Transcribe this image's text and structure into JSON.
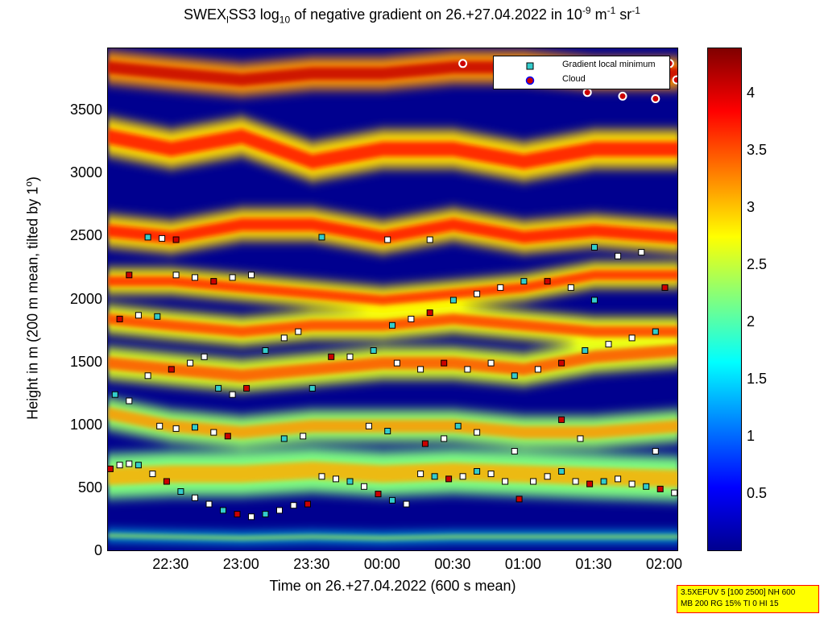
{
  "title": {
    "prefix": "SWEX",
    "sub1": "l",
    "mid1": "SS3 log",
    "sub2": "10",
    "mid2": " of negative gradient on 26.+27.04.2022 in 10",
    "sup1": "-9",
    "mid3": " m",
    "sup2": "-1",
    "mid4": " sr",
    "sup3": "-1"
  },
  "ylabel": {
    "main": "Height in m (200 m mean, tilted by 1",
    "sup": "o",
    "end": ")"
  },
  "xlabel": "Time on 26.+27.04.2022 (600 s mean)",
  "legend": {
    "minimum": "Gradient local minimum",
    "cloud": "Cloud"
  },
  "info": {
    "line1": "3.5XEFUV 5 [100 2500] NH 600",
    "line2": "MB 200 RG 15% TI 0 HI 15"
  },
  "colors": {
    "minimum_fill": "#33cccc",
    "cloud_fill": "#cc0000",
    "cloud_edge": "#0000ff",
    "background": "#00008f"
  },
  "chart_data": {
    "type": "heatmap",
    "x_axis": {
      "label": "Time on 26.+27.04.2022 (600 s mean)",
      "ticks": [
        "22:30",
        "23:00",
        "23:30",
        "00:00",
        "00:30",
        "01:00",
        "01:30",
        "02:00"
      ],
      "tick_minutes": [
        1350,
        1380,
        1410,
        1440,
        1470,
        1500,
        1530,
        1560
      ],
      "range_minutes": [
        1323,
        1566
      ]
    },
    "y_axis": {
      "label": "Height in m (200 m mean, tilted by 1°)",
      "ticks": [
        0,
        500,
        1000,
        1500,
        2000,
        2500,
        3000,
        3500
      ],
      "range": [
        0,
        4000
      ]
    },
    "colorbar": {
      "ticks": [
        0.5,
        1,
        1.5,
        2,
        2.5,
        3,
        3.5,
        4
      ],
      "tick_labels": [
        "0.5",
        "1",
        "1.5",
        "2",
        "2.5",
        "3",
        "3.5",
        "4"
      ],
      "range": [
        0,
        4.4
      ],
      "colormap": "jet"
    },
    "layers": [
      {
        "name": "surface layer",
        "points": [
          [
            1323,
            130
          ],
          [
            1350,
            120
          ],
          [
            1380,
            110
          ],
          [
            1410,
            120
          ],
          [
            1440,
            110
          ],
          [
            1470,
            120
          ],
          [
            1500,
            120
          ],
          [
            1530,
            120
          ],
          [
            1566,
            120
          ]
        ],
        "thickness": 60,
        "value": 1.6
      },
      {
        "name": "boundary layer",
        "points": [
          [
            1323,
            600
          ],
          [
            1350,
            620
          ],
          [
            1380,
            620
          ],
          [
            1410,
            650
          ],
          [
            1440,
            620
          ],
          [
            1470,
            640
          ],
          [
            1500,
            620
          ],
          [
            1530,
            600
          ],
          [
            1566,
            580
          ]
        ],
        "thickness": 350,
        "value": 2.2
      },
      {
        "name": "layer 1000",
        "points": [
          [
            1323,
            1100
          ],
          [
            1350,
            1000
          ],
          [
            1380,
            950
          ],
          [
            1410,
            1000
          ],
          [
            1440,
            1000
          ],
          [
            1470,
            1000
          ],
          [
            1500,
            950
          ],
          [
            1530,
            950
          ],
          [
            1566,
            1000
          ]
        ],
        "thickness": 250,
        "value": 2.3
      },
      {
        "name": "layer 1400",
        "points": [
          [
            1323,
            1500
          ],
          [
            1350,
            1450
          ],
          [
            1380,
            1400
          ],
          [
            1410,
            1450
          ],
          [
            1440,
            1500
          ],
          [
            1470,
            1500
          ],
          [
            1500,
            1450
          ],
          [
            1530,
            1550
          ],
          [
            1566,
            1600
          ]
        ],
        "thickness": 250,
        "value": 2.6
      },
      {
        "name": "layer 1800",
        "points": [
          [
            1323,
            1850
          ],
          [
            1350,
            1800
          ],
          [
            1380,
            1750
          ],
          [
            1410,
            1800
          ],
          [
            1440,
            1800
          ],
          [
            1470,
            1850
          ],
          [
            1500,
            1800
          ],
          [
            1530,
            1750
          ],
          [
            1566,
            1750
          ]
        ],
        "thickness": 220,
        "value": 2.7
      },
      {
        "name": "layer 2100",
        "points": [
          [
            1323,
            2150
          ],
          [
            1350,
            2150
          ],
          [
            1380,
            2100
          ],
          [
            1410,
            2050
          ],
          [
            1440,
            2000
          ],
          [
            1470,
            2050
          ],
          [
            1500,
            2100
          ],
          [
            1530,
            2200
          ],
          [
            1566,
            2200
          ]
        ],
        "thickness": 200,
        "value": 2.8
      },
      {
        "name": "layer 2500",
        "points": [
          [
            1323,
            2550
          ],
          [
            1350,
            2500
          ],
          [
            1380,
            2600
          ],
          [
            1410,
            2600
          ],
          [
            1440,
            2500
          ],
          [
            1470,
            2600
          ],
          [
            1500,
            2500
          ],
          [
            1530,
            2550
          ],
          [
            1566,
            2500
          ]
        ],
        "thickness": 250,
        "value": 2.9
      },
      {
        "name": "layer 3200",
        "points": [
          [
            1323,
            3300
          ],
          [
            1350,
            3200
          ],
          [
            1380,
            3300
          ],
          [
            1410,
            3100
          ],
          [
            1440,
            3200
          ],
          [
            1470,
            3200
          ],
          [
            1500,
            3100
          ],
          [
            1530,
            3200
          ],
          [
            1566,
            3200
          ]
        ],
        "thickness": 300,
        "value": 2.9
      },
      {
        "name": "layer 3800",
        "points": [
          [
            1323,
            3850
          ],
          [
            1350,
            3800
          ],
          [
            1380,
            3750
          ],
          [
            1410,
            3800
          ],
          [
            1440,
            3800
          ],
          [
            1470,
            3850
          ],
          [
            1500,
            3850
          ],
          [
            1530,
            3800
          ],
          [
            1566,
            3800
          ]
        ],
        "thickness": 250,
        "value": 3.2
      }
    ],
    "series": [
      {
        "name": "Gradient local minimum",
        "marker": "square",
        "points": [
          [
            1324,
            660
          ],
          [
            1328,
            690
          ],
          [
            1332,
            700
          ],
          [
            1336,
            690
          ],
          [
            1342,
            620
          ],
          [
            1348,
            560
          ],
          [
            1354,
            480
          ],
          [
            1360,
            430
          ],
          [
            1366,
            380
          ],
          [
            1372,
            330
          ],
          [
            1378,
            300
          ],
          [
            1384,
            280
          ],
          [
            1390,
            300
          ],
          [
            1396,
            330
          ],
          [
            1402,
            370
          ],
          [
            1408,
            380
          ],
          [
            1414,
            600
          ],
          [
            1420,
            580
          ],
          [
            1426,
            560
          ],
          [
            1432,
            520
          ],
          [
            1438,
            460
          ],
          [
            1444,
            410
          ],
          [
            1450,
            380
          ],
          [
            1456,
            620
          ],
          [
            1462,
            600
          ],
          [
            1468,
            580
          ],
          [
            1474,
            600
          ],
          [
            1480,
            640
          ],
          [
            1486,
            620
          ],
          [
            1492,
            560
          ],
          [
            1498,
            420
          ],
          [
            1504,
            560
          ],
          [
            1510,
            600
          ],
          [
            1516,
            640
          ],
          [
            1522,
            560
          ],
          [
            1528,
            540
          ],
          [
            1534,
            560
          ],
          [
            1540,
            580
          ],
          [
            1546,
            540
          ],
          [
            1552,
            520
          ],
          [
            1558,
            500
          ],
          [
            1564,
            470
          ],
          [
            1326,
            1250
          ],
          [
            1332,
            1200
          ],
          [
            1340,
            1400
          ],
          [
            1350,
            1450
          ],
          [
            1358,
            1500
          ],
          [
            1364,
            1550
          ],
          [
            1370,
            1300
          ],
          [
            1376,
            1250
          ],
          [
            1382,
            1300
          ],
          [
            1390,
            1600
          ],
          [
            1398,
            1700
          ],
          [
            1404,
            1750
          ],
          [
            1410,
            1300
          ],
          [
            1418,
            1550
          ],
          [
            1426,
            1550
          ],
          [
            1436,
            1600
          ],
          [
            1446,
            1500
          ],
          [
            1456,
            1450
          ],
          [
            1466,
            1500
          ],
          [
            1476,
            1450
          ],
          [
            1486,
            1500
          ],
          [
            1496,
            1400
          ],
          [
            1506,
            1450
          ],
          [
            1516,
            1500
          ],
          [
            1526,
            1600
          ],
          [
            1536,
            1650
          ],
          [
            1546,
            1700
          ],
          [
            1556,
            1750
          ],
          [
            1328,
            1850
          ],
          [
            1336,
            1880
          ],
          [
            1344,
            1870
          ],
          [
            1352,
            2200
          ],
          [
            1360,
            2180
          ],
          [
            1368,
            2150
          ],
          [
            1376,
            2180
          ],
          [
            1384,
            2200
          ],
          [
            1444,
            1800
          ],
          [
            1452,
            1850
          ],
          [
            1460,
            1900
          ],
          [
            1470,
            2000
          ],
          [
            1480,
            2050
          ],
          [
            1490,
            2100
          ],
          [
            1500,
            2150
          ],
          [
            1510,
            2150
          ],
          [
            1520,
            2100
          ],
          [
            1530,
            2000
          ],
          [
            1540,
            2350
          ],
          [
            1550,
            2380
          ],
          [
            1560,
            2100
          ],
          [
            1345,
            1000
          ],
          [
            1352,
            980
          ],
          [
            1360,
            990
          ],
          [
            1368,
            950
          ],
          [
            1374,
            920
          ],
          [
            1398,
            900
          ],
          [
            1406,
            920
          ],
          [
            1434,
            1000
          ],
          [
            1442,
            960
          ],
          [
            1458,
            860
          ],
          [
            1466,
            900
          ],
          [
            1472,
            1000
          ],
          [
            1480,
            950
          ],
          [
            1496,
            800
          ],
          [
            1516,
            1050
          ],
          [
            1524,
            900
          ],
          [
            1556,
            800
          ],
          [
            1340,
            2500
          ],
          [
            1346,
            2490
          ],
          [
            1352,
            2480
          ],
          [
            1414,
            2500
          ],
          [
            1442,
            2480
          ],
          [
            1460,
            2480
          ],
          [
            1530,
            2420
          ],
          [
            1332,
            2200
          ]
        ]
      },
      {
        "name": "Cloud",
        "marker": "circle",
        "points": [
          [
            1474,
            3880
          ],
          [
            1520,
            3880
          ],
          [
            1527,
            3650
          ],
          [
            1536,
            3800
          ],
          [
            1542,
            3620
          ],
          [
            1548,
            3880
          ],
          [
            1556,
            3600
          ],
          [
            1562,
            3880
          ],
          [
            1565,
            3750
          ]
        ]
      }
    ]
  }
}
